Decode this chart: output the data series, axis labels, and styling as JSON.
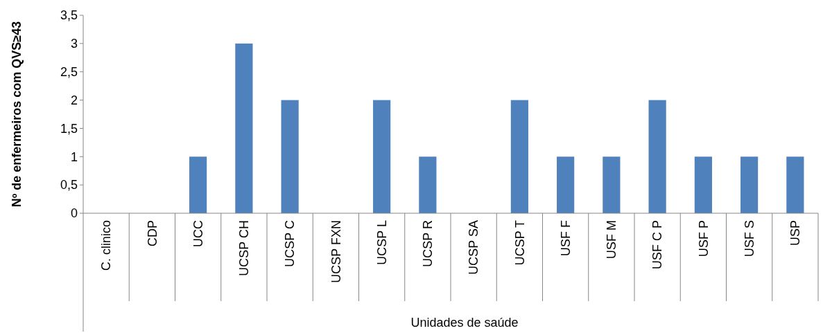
{
  "chart_data": {
    "type": "bar",
    "xlabel": "Unidades de saúde",
    "ylabel": "Nº de enfermeiros com QVS≥43",
    "categories": [
      "C. clinico",
      "CDP",
      "UCC",
      "UCSP CH",
      "UCSP C",
      "UCSP FXN",
      "UCSP L",
      "UCSP R",
      "UCSP SA",
      "UCSP T",
      "USF F",
      "USF M",
      "USF C P",
      "USF P",
      "USF S",
      "USP"
    ],
    "values": [
      0,
      0,
      1,
      3,
      2,
      0,
      2,
      1,
      0,
      2,
      1,
      1,
      2,
      1,
      1,
      1
    ],
    "color": "#4f81bd",
    "ylim": [
      0,
      3.5
    ],
    "yticks": [
      {
        "value": 0,
        "label": "0"
      },
      {
        "value": 0.5,
        "label": "0,5"
      },
      {
        "value": 1,
        "label": "1"
      },
      {
        "value": 1.5,
        "label": "1,5"
      },
      {
        "value": 2,
        "label": "2"
      },
      {
        "value": 2.5,
        "label": "2,5"
      },
      {
        "value": 3,
        "label": "3"
      },
      {
        "value": 3.5,
        "label": "3,5"
      }
    ],
    "grid": false
  }
}
